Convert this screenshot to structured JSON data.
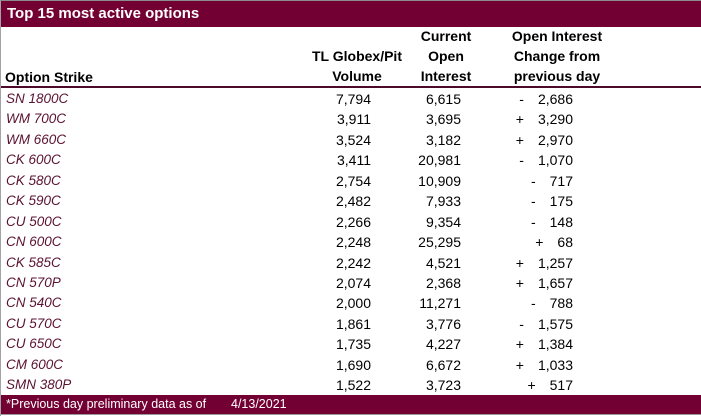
{
  "title": "Top 15 most active options",
  "header": {
    "option_strike": "Option Strike",
    "volume_lines": [
      "TL Globex/Pit",
      "Volume"
    ],
    "open_interest_lines": [
      "Current",
      "Open",
      "Interest"
    ],
    "change_lines": [
      "Open Interest",
      "Change from",
      "previous day"
    ]
  },
  "rows": [
    {
      "strike": "SN 1800C",
      "volume": "7,794",
      "open_interest": "6,615",
      "change_sign": "-",
      "change_value": "2,686"
    },
    {
      "strike": "WM 700C",
      "volume": "3,911",
      "open_interest": "3,695",
      "change_sign": "+",
      "change_value": "3,290"
    },
    {
      "strike": "WM 660C",
      "volume": "3,524",
      "open_interest": "3,182",
      "change_sign": "+",
      "change_value": "2,970"
    },
    {
      "strike": "CK 600C",
      "volume": "3,411",
      "open_interest": "20,981",
      "change_sign": "-",
      "change_value": "1,070"
    },
    {
      "strike": "CK 580C",
      "volume": "2,754",
      "open_interest": "10,909",
      "change_sign": "-",
      "change_value": "717"
    },
    {
      "strike": "CK 590C",
      "volume": "2,482",
      "open_interest": "7,933",
      "change_sign": "-",
      "change_value": "175"
    },
    {
      "strike": "CU 500C",
      "volume": "2,266",
      "open_interest": "9,354",
      "change_sign": "-",
      "change_value": "148"
    },
    {
      "strike": "CN 600C",
      "volume": "2,248",
      "open_interest": "25,295",
      "change_sign": "+",
      "change_value": "68"
    },
    {
      "strike": "CK 585C",
      "volume": "2,242",
      "open_interest": "4,521",
      "change_sign": "+",
      "change_value": "1,257"
    },
    {
      "strike": "CN 570P",
      "volume": "2,074",
      "open_interest": "2,368",
      "change_sign": "+",
      "change_value": "1,657"
    },
    {
      "strike": "CN 540C",
      "volume": "2,000",
      "open_interest": "11,271",
      "change_sign": "-",
      "change_value": "788"
    },
    {
      "strike": "CU 570C",
      "volume": "1,861",
      "open_interest": "3,776",
      "change_sign": "-",
      "change_value": "1,575"
    },
    {
      "strike": "CU 650C",
      "volume": "1,735",
      "open_interest": "4,227",
      "change_sign": "+",
      "change_value": "1,384"
    },
    {
      "strike": "CM 600C",
      "volume": "1,690",
      "open_interest": "6,672",
      "change_sign": "+",
      "change_value": "1,033"
    },
    {
      "strike": "SMN 380P",
      "volume": "1,522",
      "open_interest": "3,723",
      "change_sign": "+",
      "change_value": "517"
    }
  ],
  "footer": {
    "note": "*Previous day preliminary data as of",
    "date": "4/13/2021"
  },
  "colors": {
    "title_bar": "#730032",
    "header_underline": "#4d0a28",
    "strike_text": "#5a1230",
    "outer_border": "#a3a3a3"
  }
}
